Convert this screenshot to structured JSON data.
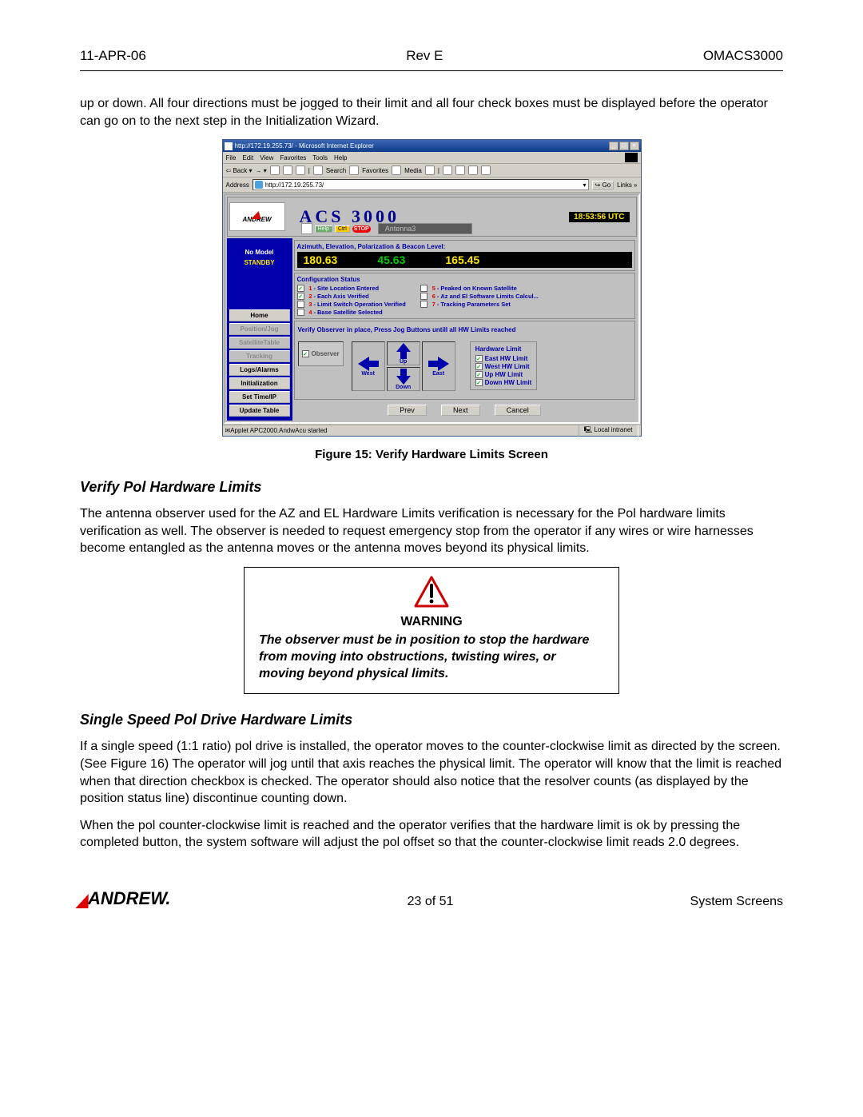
{
  "header": {
    "date": "11-APR-06",
    "rev": "Rev E",
    "doc_id": "OMACS3000"
  },
  "intro_paragraph": "up or down. All four directions must be jogged to their limit and all four check boxes must be displayed before the operator can go on to the next step in the Initialization Wizard.",
  "screenshot": {
    "browser": {
      "title": "http://172.19.255.73/ - Microsoft Internet Explorer",
      "menus": [
        "File",
        "Edit",
        "View",
        "Favorites",
        "Tools",
        "Help"
      ],
      "nav": {
        "back": "Back",
        "search": "Search",
        "favorites": "Favorites",
        "media": "Media"
      },
      "address_label": "Address",
      "address_url": "http://172.19.255.73/",
      "go": "Go",
      "links": "Links  »",
      "status_left": "Applet APC2000.AndwAcu started",
      "status_right": "Local intranet"
    },
    "app": {
      "logo_text": "ANDREW",
      "title": "ACS 3000",
      "utc": "18:53:56 UTC",
      "sub": {
        "help": "Help",
        "ctrl": "Ctrl",
        "stop": "STOP",
        "antenna": "Antenna3"
      },
      "left": {
        "status1": "No Model",
        "status2": "STANDBY",
        "buttons": [
          {
            "label": "Home",
            "enabled": true
          },
          {
            "label": "Position/Jog",
            "enabled": false
          },
          {
            "label": "SatelliteTable",
            "enabled": false
          },
          {
            "label": "Tracking",
            "enabled": false
          },
          {
            "label": "Logs/Alarms",
            "enabled": true
          },
          {
            "label": "Initialization",
            "enabled": true
          },
          {
            "label": "Set Time/IP",
            "enabled": true
          },
          {
            "label": "Update Table",
            "enabled": true
          }
        ]
      },
      "beacon": {
        "title": "Azimuth, Elevation, Polarization & Beacon Level:",
        "az": "180.63",
        "el": "45.63",
        "pol": "165.45"
      },
      "config": {
        "title": "Configuration Status",
        "items_left": [
          {
            "n": "1",
            "t": "Site Location Entered",
            "c": true
          },
          {
            "n": "2",
            "t": "Each Axis Verified",
            "c": true
          },
          {
            "n": "3",
            "t": "Limit Switch Operation Verified",
            "c": false
          },
          {
            "n": "4",
            "t": "Base Satellite Selected",
            "c": false
          }
        ],
        "items_right": [
          {
            "n": "5",
            "t": "Peaked on Known Satellite",
            "c": false
          },
          {
            "n": "6",
            "t": "Az and El Software Limits Calcul...",
            "c": false
          },
          {
            "n": "7",
            "t": "Tracking Parameters Set",
            "c": false
          }
        ]
      },
      "verify": {
        "instruction": "Verify Observer in place, Press Jog Buttons untill all HW Limits reached",
        "observer_label": "Observer",
        "arrows": {
          "west": "West",
          "up": "Up",
          "east": "East",
          "down": "Down"
        },
        "hw_title": "Hardware Limit",
        "hw_items": [
          {
            "t": "East HW Limit",
            "c": true
          },
          {
            "t": "West HW Limit",
            "c": true
          },
          {
            "t": "Up HW Limit",
            "c": true
          },
          {
            "t": "Down HW Limit",
            "c": true
          }
        ]
      },
      "wizard": {
        "prev": "Prev",
        "next": "Next",
        "cancel": "Cancel"
      }
    }
  },
  "figure_caption": "Figure 15: Verify Hardware Limits Screen",
  "section1": {
    "heading": "Verify Pol Hardware Limits",
    "p": "The antenna observer used for the AZ and EL Hardware Limits verification is necessary for the Pol hardware limits verification as well. The observer is needed to request emergency stop from the operator if any wires or wire harnesses become entangled as the antenna moves or the antenna moves beyond its physical limits."
  },
  "warning": {
    "head": "WARNING",
    "text": "The observer must be in position to stop the hardware from moving into obstructions, twisting wires, or moving beyond physical limits."
  },
  "section2": {
    "heading": "Single Speed Pol Drive Hardware Limits",
    "p1": "If a single speed (1:1 ratio) pol drive is installed, the operator moves to the counter-clockwise limit as directed by the screen. (See Figure 16) The operator will jog until that axis reaches the physical limit. The operator will know that the limit is reached when that direction checkbox is checked. The operator should also notice that the resolver counts (as displayed by the position status line) discontinue counting down.",
    "p2": "When the pol counter-clockwise limit is reached and the operator verifies that the hardware limit is ok by pressing the completed button, the system software will adjust the pol offset so that the counter-clockwise limit reads 2.0 degrees."
  },
  "footer": {
    "logo": "ANDREW.",
    "page": "23 of 51",
    "section": "System Screens"
  },
  "colors": {
    "arrow": "#0000aa"
  }
}
